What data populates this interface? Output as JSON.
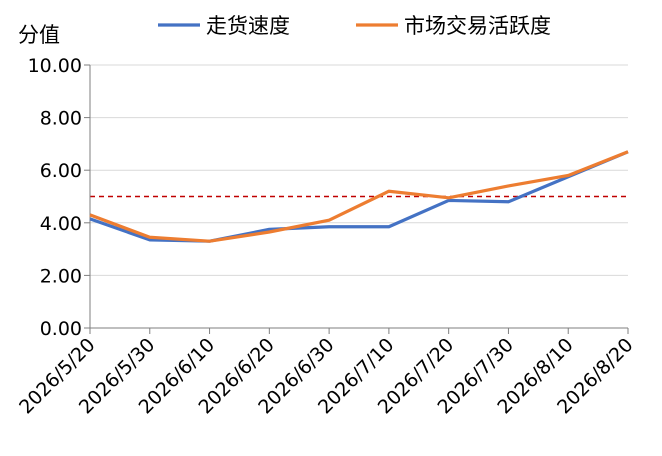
{
  "chart_data": {
    "type": "line",
    "title": "",
    "ylabel": "分值",
    "xlabel": "",
    "categories": [
      "2026/5/20",
      "2026/5/30",
      "2026/6/10",
      "2026/6/20",
      "2026/6/30",
      "2026/7/10",
      "2026/7/20",
      "2026/7/30",
      "2026/8/10",
      "2026/8/20"
    ],
    "series": [
      {
        "name": "走货速度",
        "color": "#4472C4",
        "values": [
          4.15,
          3.35,
          3.3,
          3.75,
          3.85,
          3.85,
          4.85,
          4.8,
          5.75,
          6.7
        ]
      },
      {
        "name": "市场交易活跃度",
        "color": "#ED7D31",
        "values": [
          4.3,
          3.45,
          3.3,
          3.65,
          4.1,
          5.2,
          4.95,
          5.4,
          5.8,
          6.7
        ]
      }
    ],
    "reference_line": {
      "value": 5.0,
      "color": "#C00000",
      "style": "dashed"
    },
    "ylim": [
      0,
      10
    ],
    "yticks": [
      "0.00",
      "2.00",
      "4.00",
      "6.00",
      "8.00",
      "10.00"
    ],
    "grid": true,
    "legend_position": "top"
  }
}
